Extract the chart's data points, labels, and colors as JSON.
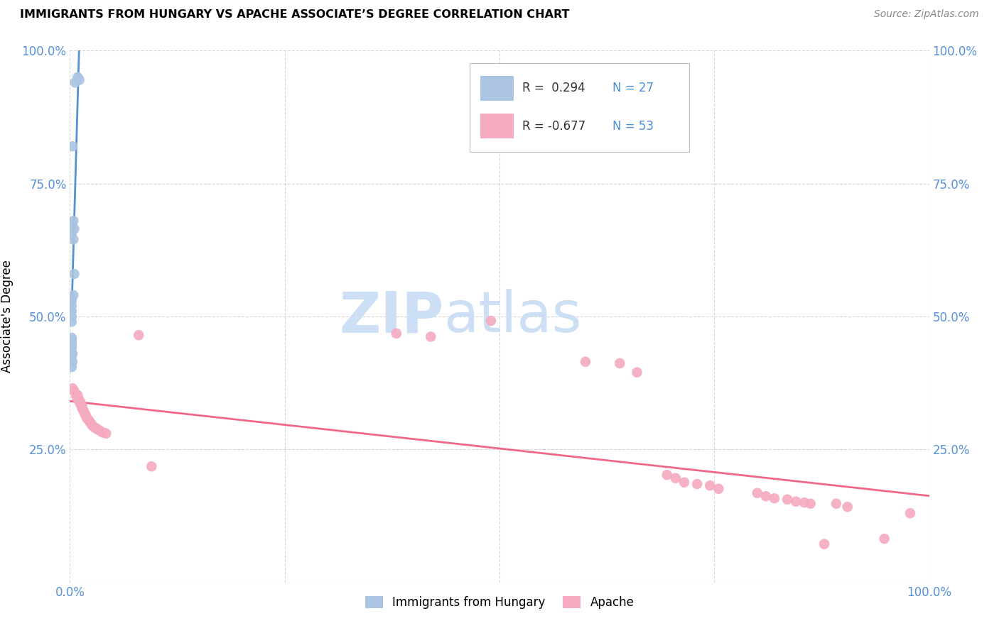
{
  "title": "IMMIGRANTS FROM HUNGARY VS APACHE ASSOCIATE’S DEGREE CORRELATION CHART",
  "source": "Source: ZipAtlas.com",
  "ylabel": "Associate's Degree",
  "xlim": [
    0.0,
    1.0
  ],
  "ylim": [
    0.0,
    1.0
  ],
  "y_tick_labels": [
    "",
    "25.0%",
    "50.0%",
    "75.0%",
    "100.0%"
  ],
  "y_tick_positions": [
    0.0,
    0.25,
    0.5,
    0.75,
    1.0
  ],
  "right_y_tick_labels": [
    "100.0%",
    "75.0%",
    "50.0%",
    "25.0%",
    ""
  ],
  "right_y_tick_positions": [
    1.0,
    0.75,
    0.5,
    0.25,
    0.0
  ],
  "blue_color": "#aac4e2",
  "pink_color": "#f5aabf",
  "blue_line_color": "#5590d0",
  "pink_line_color": "#f06888",
  "blue_dashed_color": "#aac4e2",
  "legend_R_color": "#4a90d9",
  "legend_label1": "Immigrants from Hungary",
  "legend_label2": "Apache",
  "R1": "0.294",
  "N1": "27",
  "R2": "-0.677",
  "N2": "53",
  "blue_points_x": [
    0.006,
    0.009,
    0.011,
    0.003,
    0.004,
    0.005,
    0.004,
    0.005,
    0.004,
    0.002,
    0.002,
    0.002,
    0.002,
    0.002,
    0.002,
    0.002,
    0.002,
    0.002,
    0.002,
    0.002,
    0.002,
    0.002,
    0.003,
    0.002,
    0.003,
    0.002,
    0.002
  ],
  "blue_points_y": [
    0.94,
    0.95,
    0.945,
    0.82,
    0.68,
    0.665,
    0.645,
    0.58,
    0.54,
    0.675,
    0.665,
    0.655,
    0.535,
    0.53,
    0.52,
    0.51,
    0.5,
    0.49,
    0.455,
    0.45,
    0.445,
    0.44,
    0.43,
    0.425,
    0.415,
    0.405,
    0.46
  ],
  "pink_points_x": [
    0.003,
    0.005,
    0.007,
    0.008,
    0.009,
    0.01,
    0.01,
    0.012,
    0.012,
    0.014,
    0.014,
    0.015,
    0.016,
    0.017,
    0.018,
    0.019,
    0.02,
    0.022,
    0.023,
    0.025,
    0.026,
    0.028,
    0.03,
    0.032,
    0.035,
    0.038,
    0.042,
    0.08,
    0.095,
    0.38,
    0.42,
    0.49,
    0.6,
    0.64,
    0.66,
    0.695,
    0.705,
    0.715,
    0.73,
    0.745,
    0.755,
    0.8,
    0.81,
    0.82,
    0.835,
    0.845,
    0.855,
    0.862,
    0.878,
    0.892,
    0.905,
    0.948,
    0.978
  ],
  "pink_points_y": [
    0.365,
    0.36,
    0.352,
    0.348,
    0.352,
    0.345,
    0.342,
    0.34,
    0.336,
    0.332,
    0.328,
    0.325,
    0.322,
    0.318,
    0.315,
    0.312,
    0.308,
    0.305,
    0.302,
    0.298,
    0.295,
    0.292,
    0.29,
    0.288,
    0.285,
    0.282,
    0.28,
    0.465,
    0.218,
    0.468,
    0.462,
    0.492,
    0.415,
    0.412,
    0.395,
    0.202,
    0.196,
    0.188,
    0.185,
    0.182,
    0.176,
    0.168,
    0.162,
    0.158,
    0.156,
    0.152,
    0.15,
    0.148,
    0.072,
    0.148,
    0.142,
    0.082,
    0.13
  ],
  "watermark_ZIP": "ZIP",
  "watermark_atlas": "atlas",
  "watermark_color": "#ccdff5",
  "background_color": "#ffffff",
  "grid_color": "#cccccc"
}
